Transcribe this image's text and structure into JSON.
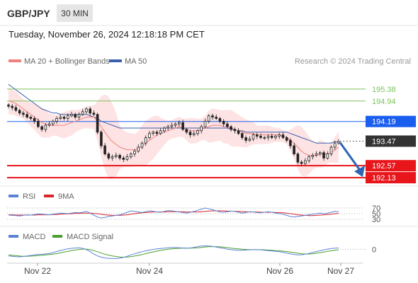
{
  "header": {
    "symbol": "GBP/JPY",
    "timeframe": "30 MIN",
    "timestamp": "Tuesday, November 26, 2024 12:18:18 PM CET"
  },
  "legend": {
    "ma20_label": "MA 20 + Bollinger Bands",
    "ma50_label": "MA 50",
    "source": "Research © 2024 Trading Central",
    "rsi_label": "RSI",
    "rsi_ma_label": "9MA",
    "macd_label": "MACD",
    "macd_signal_label": "MACD Signal"
  },
  "colors": {
    "ma20": "#f08080",
    "ma50": "#3a5fb0",
    "bollinger_fill": "#fde3e3",
    "resistance": "#7cc35a",
    "pivot": "#1a5ef0",
    "support": "#e8151b",
    "current": "#333333",
    "arrow": "#2d64b3",
    "candle": "#222222",
    "rsi": "#5b82d6",
    "rsi_ma": "#d9262b",
    "macd": "#5b82d6",
    "macd_signal": "#4aa02c"
  },
  "chart_data": {
    "type": "candlestick",
    "ylim": [
      191.9,
      196.05
    ],
    "x_tick_labels": [
      "Nov 22",
      "Nov 24",
      "Nov 26",
      "Nov 27"
    ],
    "levels": [
      {
        "value": 195.38,
        "label": "195.38",
        "kind": "resistance"
      },
      {
        "value": 194.94,
        "label": "194.94",
        "kind": "resistance"
      },
      {
        "value": 194.19,
        "label": "194.19",
        "kind": "pivot"
      },
      {
        "value": 193.47,
        "label": "193.47",
        "kind": "current"
      },
      {
        "value": 192.57,
        "label": "192.57",
        "kind": "support"
      },
      {
        "value": 192.13,
        "label": "192.13",
        "kind": "support"
      }
    ],
    "closes": [
      194.75,
      194.7,
      194.6,
      194.5,
      194.45,
      194.35,
      194.3,
      194.2,
      194.0,
      193.9,
      194.05,
      194.1,
      194.2,
      194.3,
      194.35,
      194.3,
      194.4,
      194.45,
      194.35,
      194.45,
      194.55,
      194.65,
      194.5,
      194.45,
      193.8,
      193.3,
      193.0,
      192.85,
      192.9,
      192.95,
      192.85,
      192.8,
      192.9,
      193.0,
      193.1,
      193.25,
      193.4,
      193.6,
      193.75,
      193.8,
      193.75,
      193.85,
      193.95,
      194.0,
      194.05,
      194.1,
      194.15,
      193.9,
      193.8,
      193.7,
      193.75,
      193.85,
      194.0,
      194.2,
      194.4,
      194.35,
      194.3,
      194.2,
      194.1,
      194.0,
      193.9,
      193.85,
      193.75,
      193.6,
      193.5,
      193.55,
      193.7,
      193.65,
      193.6,
      193.6,
      193.65,
      193.6,
      193.65,
      193.7,
      193.6,
      193.5,
      193.3,
      193.0,
      192.7,
      192.65,
      192.75,
      192.9,
      192.95,
      193.0,
      193.05,
      192.85,
      193.0,
      193.25,
      193.4,
      193.45
    ],
    "ma20": [
      194.95,
      194.9,
      194.85,
      194.75,
      194.65,
      194.55,
      194.45,
      194.35,
      194.25,
      194.15,
      194.1,
      194.05,
      194.05,
      194.05,
      194.05,
      194.05,
      194.1,
      194.15,
      194.2,
      194.25,
      194.3,
      194.35,
      194.35,
      194.35,
      194.2,
      194.0,
      193.8,
      193.6,
      193.45,
      193.35,
      193.25,
      193.2,
      193.15,
      193.15,
      193.15,
      193.2,
      193.3,
      193.4,
      193.5,
      193.6,
      193.7,
      193.75,
      193.8,
      193.85,
      193.9,
      193.95,
      194.0,
      193.95,
      193.9,
      193.85,
      193.85,
      193.85,
      193.9,
      193.95,
      194.0,
      194.05,
      194.05,
      194.05,
      194.0,
      194.0,
      193.95,
      193.9,
      193.85,
      193.8,
      193.75,
      193.75,
      193.75,
      193.7,
      193.7,
      193.7,
      193.7,
      193.7,
      193.7,
      193.7,
      193.65,
      193.6,
      193.5,
      193.4,
      193.25,
      193.1,
      193.0,
      192.95,
      192.95,
      192.95,
      193.0,
      193.0,
      193.0,
      193.05,
      193.15,
      193.25
    ],
    "ma50": [
      195.55,
      195.45,
      195.35,
      195.25,
      195.15,
      195.05,
      194.95,
      194.85,
      194.75,
      194.65,
      194.6,
      194.55,
      194.5,
      194.5,
      194.45,
      194.45,
      194.45,
      194.45,
      194.45,
      194.45,
      194.45,
      194.45,
      194.4,
      194.35,
      194.3,
      194.2,
      194.15,
      194.1,
      194.05,
      194.0,
      193.95,
      193.95,
      193.95,
      193.95,
      193.95,
      193.95,
      193.95,
      193.95,
      193.95,
      193.95,
      193.95,
      193.95,
      193.95,
      193.95,
      193.95,
      193.95,
      193.95,
      193.95,
      193.95,
      193.95,
      193.95,
      193.95,
      193.95,
      193.95,
      193.95,
      193.95,
      193.95,
      193.95,
      193.95,
      193.95,
      193.9,
      193.9,
      193.85,
      193.85,
      193.8,
      193.8,
      193.8,
      193.8,
      193.8,
      193.8,
      193.8,
      193.8,
      193.8,
      193.8,
      193.8,
      193.8,
      193.75,
      193.7,
      193.65,
      193.6,
      193.55,
      193.5,
      193.45,
      193.4,
      193.4,
      193.4,
      193.4,
      193.4,
      193.45,
      193.45
    ],
    "rsi": {
      "ylim": [
        25,
        75
      ],
      "ticks": [
        70,
        50,
        30
      ],
      "rsi": [
        45,
        44,
        43,
        42,
        44,
        46,
        45,
        47,
        49,
        48,
        47,
        46,
        48,
        50,
        52,
        51,
        50,
        52,
        54,
        53,
        55,
        58,
        52,
        45,
        38,
        35,
        37,
        40,
        42,
        44,
        46,
        50,
        55,
        60,
        58,
        56,
        54,
        57,
        60,
        58,
        56,
        55,
        58,
        61,
        60,
        58,
        56,
        54,
        52,
        55,
        58,
        62,
        66,
        70,
        67,
        64,
        60,
        56,
        55,
        57,
        59,
        58,
        55,
        52,
        54,
        57,
        56,
        54,
        53,
        55,
        57,
        55,
        52,
        50,
        48,
        44,
        40,
        38,
        40,
        42,
        44,
        46,
        48,
        50,
        52,
        50,
        52,
        55,
        58,
        57
      ],
      "ma": [
        46,
        46,
        45,
        45,
        45,
        45,
        45,
        45,
        46,
        46,
        46,
        46,
        47,
        47,
        48,
        49,
        49,
        50,
        51,
        51,
        52,
        52,
        52,
        51,
        50,
        48,
        46,
        45,
        44,
        44,
        44,
        45,
        46,
        48,
        50,
        52,
        53,
        54,
        55,
        56,
        56,
        56,
        56,
        57,
        57,
        57,
        57,
        57,
        56,
        56,
        56,
        56,
        57,
        58,
        59,
        60,
        60,
        60,
        60,
        59,
        59,
        58,
        58,
        57,
        57,
        56,
        56,
        56,
        55,
        55,
        55,
        55,
        54,
        54,
        53,
        52,
        50,
        48,
        46,
        45,
        44,
        43,
        43,
        44,
        45,
        46,
        47,
        48,
        50,
        51
      ]
    },
    "macd": {
      "ylim": [
        -0.55,
        0.35
      ],
      "ticks": [
        0
      ],
      "macd": [
        -0.35,
        -0.37,
        -0.39,
        -0.4,
        -0.38,
        -0.35,
        -0.33,
        -0.3,
        -0.28,
        -0.27,
        -0.25,
        -0.22,
        -0.18,
        -0.12,
        -0.06,
        -0.02,
        0.02,
        0.05,
        0.07,
        0.08,
        0.05,
        -0.02,
        -0.12,
        -0.25,
        -0.35,
        -0.42,
        -0.46,
        -0.48,
        -0.49,
        -0.49,
        -0.47,
        -0.43,
        -0.37,
        -0.3,
        -0.24,
        -0.18,
        -0.13,
        -0.08,
        -0.04,
        -0.01,
        0.02,
        0.04,
        0.06,
        0.08,
        0.09,
        0.09,
        0.08,
        0.07,
        0.06,
        0.07,
        0.1,
        0.14,
        0.17,
        0.18,
        0.17,
        0.15,
        0.12,
        0.08,
        0.05,
        0.01,
        -0.02,
        -0.04,
        -0.05,
        -0.05,
        -0.04,
        -0.03,
        -0.02,
        -0.02,
        -0.03,
        -0.05,
        -0.07,
        -0.09,
        -0.11,
        -0.13,
        -0.16,
        -0.2,
        -0.24,
        -0.28,
        -0.3,
        -0.29,
        -0.26,
        -0.22,
        -0.17,
        -0.12,
        -0.07,
        -0.03,
        0.01,
        0.04,
        0.06,
        0.07
      ],
      "signal": [
        -0.3,
        -0.32,
        -0.34,
        -0.36,
        -0.37,
        -0.37,
        -0.36,
        -0.35,
        -0.33,
        -0.32,
        -0.3,
        -0.28,
        -0.26,
        -0.23,
        -0.19,
        -0.15,
        -0.11,
        -0.07,
        -0.04,
        -0.01,
        0.01,
        0.01,
        -0.02,
        -0.07,
        -0.13,
        -0.2,
        -0.26,
        -0.31,
        -0.35,
        -0.38,
        -0.41,
        -0.42,
        -0.41,
        -0.39,
        -0.36,
        -0.32,
        -0.28,
        -0.23,
        -0.18,
        -0.14,
        -0.1,
        -0.06,
        -0.03,
        0.0,
        0.02,
        0.04,
        0.05,
        0.06,
        0.06,
        0.06,
        0.07,
        0.08,
        0.1,
        0.12,
        0.14,
        0.14,
        0.14,
        0.13,
        0.11,
        0.09,
        0.06,
        0.04,
        0.02,
        0.0,
        -0.01,
        -0.02,
        -0.02,
        -0.02,
        -0.02,
        -0.03,
        -0.04,
        -0.05,
        -0.07,
        -0.08,
        -0.1,
        -0.12,
        -0.15,
        -0.18,
        -0.21,
        -0.24,
        -0.25,
        -0.25,
        -0.24,
        -0.21,
        -0.18,
        -0.15,
        -0.11,
        -0.08,
        -0.05,
        -0.02
      ]
    }
  }
}
